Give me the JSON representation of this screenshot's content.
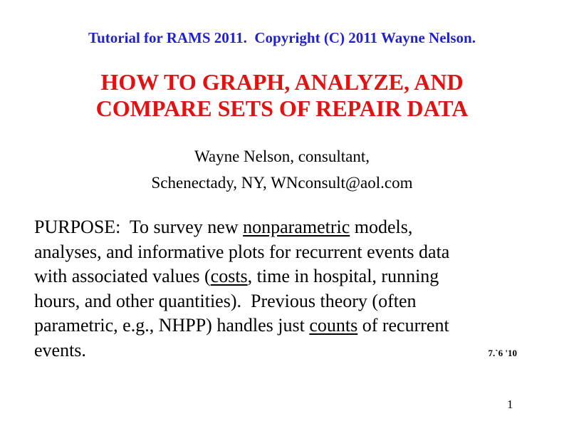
{
  "slide": {
    "header": "Tutorial for RAMS 2011.  Copyright (C) 2011 Wayne Nelson.",
    "title_line1": "HOW TO GRAPH, ANALYZE, AND",
    "title_line2": "COMPARE SETS OF REPAIR DATA",
    "author_line1": "Wayne Nelson, consultant,",
    "author_line2": "Schenectady, NY, WNconsult@aol.com",
    "purpose": {
      "l1_pre": "PURPOSE:  To survey new ",
      "l1_u": "nonparametric",
      "l1_post": " models,",
      "l2": "analyses, and informative plots for recurrent events data",
      "l3_pre": "with associated values (",
      "l3_u": "costs",
      "l3_post": ", time in hospital, running",
      "l4": "hours, and other quantities).  Previous theory (often",
      "l5_pre": "parametric, e.g., NHPP) handles just ",
      "l5_u": "counts",
      "l5_post": " of recurrent",
      "l6": "events."
    },
    "date_note": "7.`6 '10",
    "page_number": "1",
    "colors": {
      "header_blue": "#2222cc",
      "title_red": "#e01212",
      "body_black": "#000000"
    }
  }
}
